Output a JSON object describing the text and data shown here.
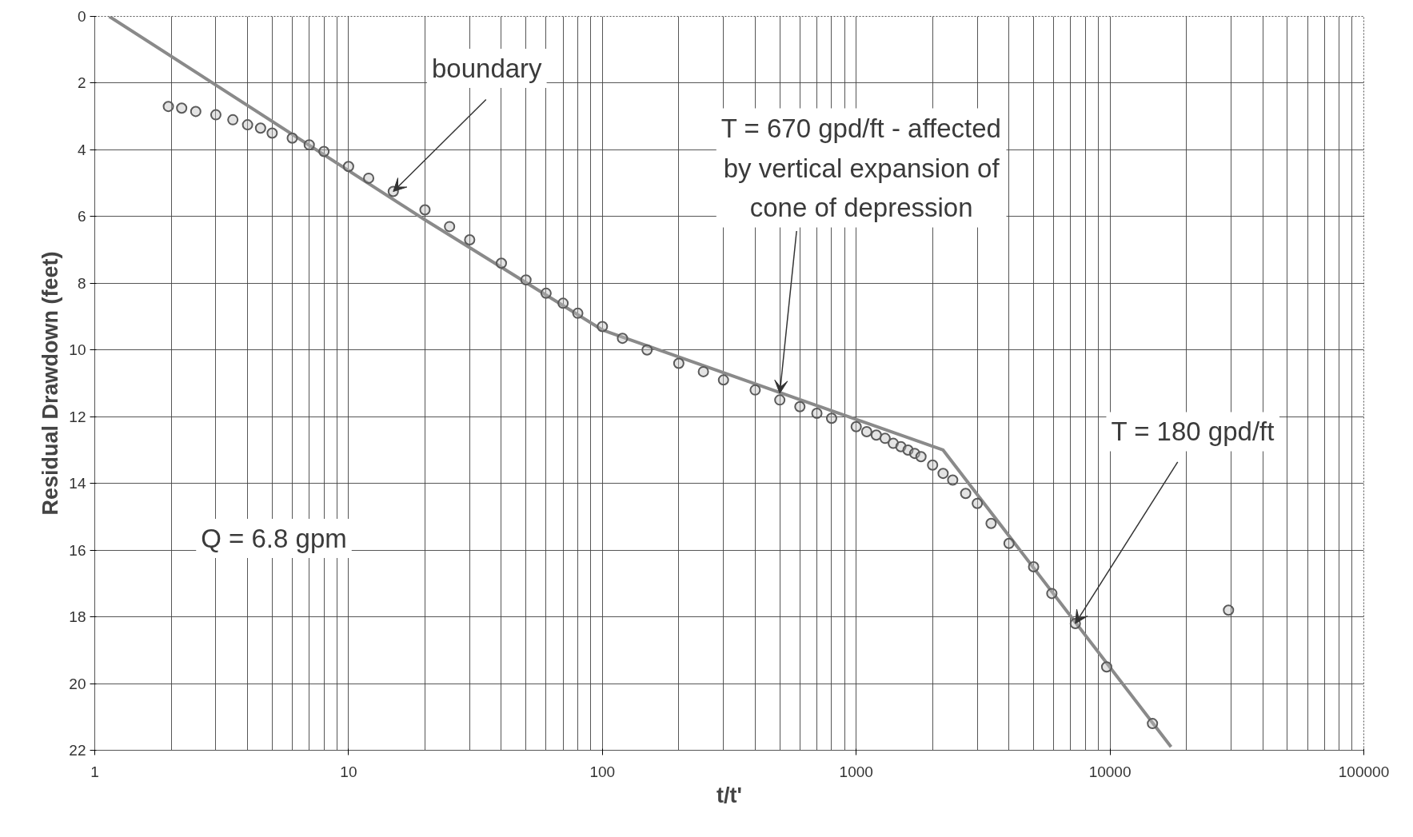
{
  "chart_data": {
    "type": "scatter",
    "xlabel": "t/t'",
    "ylabel": "Residual Drawdown (feet)",
    "log": "x",
    "xlim": [
      1,
      100000
    ],
    "xticks": [
      1,
      10,
      100,
      1000,
      10000,
      100000
    ],
    "ylim": [
      22,
      0
    ],
    "yticks": [
      0,
      2,
      4,
      6,
      8,
      10,
      12,
      14,
      16,
      18,
      20,
      22
    ],
    "grid": true,
    "series": [
      {
        "type": "line",
        "color": "#8a8a8a",
        "line_style": "solid",
        "x": [
          1.14,
          20,
          100,
          2200,
          17400
        ],
        "values": [
          0,
          6.1,
          9.4,
          13.0,
          21.9
        ]
      },
      {
        "marker": "circle",
        "color": "#5a5a5a",
        "x": [
          1.95,
          2.2,
          2.5,
          3,
          3.5,
          4,
          4.5,
          5,
          6,
          7,
          8,
          10,
          12,
          15,
          20,
          25,
          30,
          40,
          50,
          60,
          70,
          80,
          100,
          120,
          150,
          200,
          250,
          300,
          400,
          500,
          600,
          700,
          800,
          1000,
          1100,
          1200,
          1300,
          1400,
          1500,
          1600,
          1700,
          1800,
          2000,
          2200,
          2400,
          2700,
          3000,
          3400,
          4000,
          5000,
          5900,
          7300,
          9700,
          14700,
          29300
        ],
        "values": [
          2.7,
          2.75,
          2.85,
          2.95,
          3.1,
          3.25,
          3.35,
          3.5,
          3.65,
          3.85,
          4.05,
          4.5,
          4.85,
          5.25,
          5.8,
          6.3,
          6.7,
          7.4,
          7.9,
          8.3,
          8.6,
          8.9,
          9.3,
          9.65,
          10.0,
          10.4,
          10.65,
          10.9,
          11.2,
          11.5,
          11.7,
          11.9,
          12.05,
          12.3,
          12.45,
          12.55,
          12.65,
          12.8,
          12.9,
          13.0,
          13.1,
          13.2,
          13.45,
          13.7,
          13.9,
          14.3,
          14.6,
          15.2,
          15.8,
          16.5,
          17.3,
          18.2,
          19.5,
          21.2,
          17.8
        ]
      }
    ],
    "annotations": [
      {
        "text": "boundary",
        "x": 15,
        "y": 5.25
      },
      {
        "text": "T = 670 gpd/ft - affected\nby vertical expansion of\ncone of depression",
        "x": 500,
        "y": 11.3
      },
      {
        "text": "T = 180 gpd/ft",
        "x": 7300,
        "y": 18.2
      },
      "Q = 6.8 gpm"
    ]
  }
}
